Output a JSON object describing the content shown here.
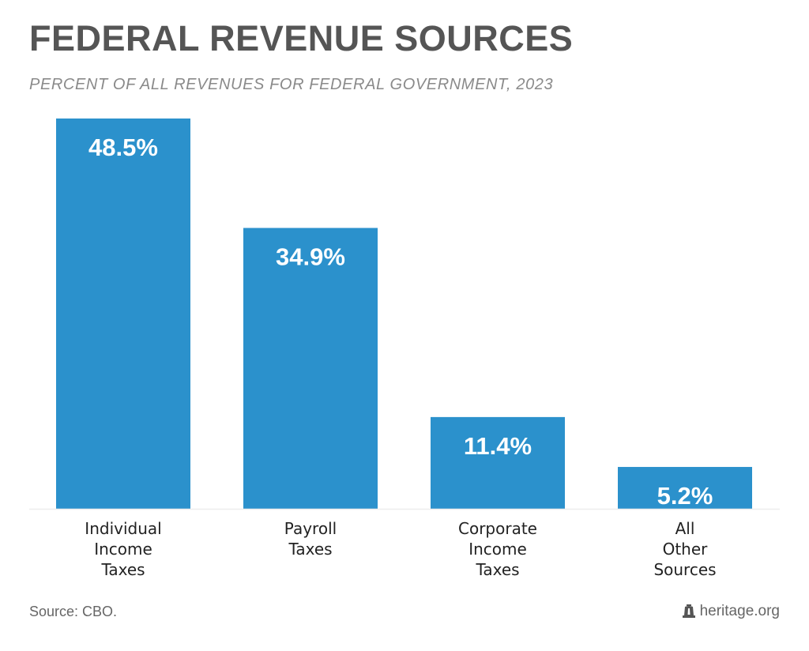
{
  "chart_data": {
    "type": "bar",
    "title": "FEDERAL REVENUE SOURCES",
    "subtitle": "PERCENT OF ALL REVENUES FOR FEDERAL GOVERNMENT, 2023",
    "xlabel": "",
    "ylabel": "",
    "ylim": [
      0,
      48.5
    ],
    "grid": false,
    "categories": [
      [
        "Individual",
        "Income",
        "Taxes"
      ],
      [
        "Payroll",
        "Taxes"
      ],
      [
        "Corporate",
        "Income",
        "Taxes"
      ],
      [
        "All",
        "Other",
        "Sources"
      ]
    ],
    "values": [
      48.5,
      34.9,
      11.4,
      5.2
    ],
    "data_labels": [
      "48.5%",
      "34.9%",
      "11.4%",
      "5.2%"
    ],
    "bar_color": "#2b91cc",
    "baseline_color": "#eeeeee"
  },
  "footer": {
    "source": "Source: CBO.",
    "brand": "heritage.org",
    "brand_icon": "liberty-bell-icon"
  }
}
